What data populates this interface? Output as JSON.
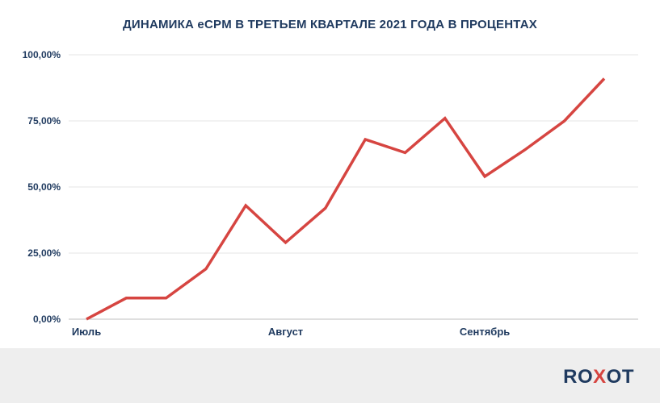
{
  "colors": {
    "title": "#1f3a5f",
    "axis_text": "#1f3a5f",
    "line": "#d64541",
    "grid": "#e6e6e6",
    "footer_bg": "#eeeeee",
    "logo_dark": "#1f3a5f",
    "logo_accent": "#d64541"
  },
  "logo": {
    "part1": "RO",
    "part2": "X",
    "part3": "OT"
  },
  "chart_data": {
    "type": "line",
    "title": "ДИНАМИКА eCPM В ТРЕТЬЕМ КВАРТАЛЕ 2021 ГОДА В ПРОЦЕНТАХ",
    "xlabel": "",
    "ylabel": "",
    "ylim": [
      0,
      100
    ],
    "yticks": [
      0,
      25,
      50,
      75,
      100
    ],
    "ytick_labels": [
      "0,00%",
      "25,00%",
      "50,00%",
      "75,00%",
      "100,00%"
    ],
    "x_labels": [
      {
        "label": "Июль",
        "index": 0
      },
      {
        "label": "Август",
        "index": 5
      },
      {
        "label": "Сентябрь",
        "index": 10
      }
    ],
    "grid": true,
    "legend": "none",
    "series": [
      {
        "values": [
          0,
          8,
          8,
          19,
          43,
          29,
          42,
          68,
          63,
          76,
          54,
          64,
          75,
          91
        ]
      }
    ]
  }
}
